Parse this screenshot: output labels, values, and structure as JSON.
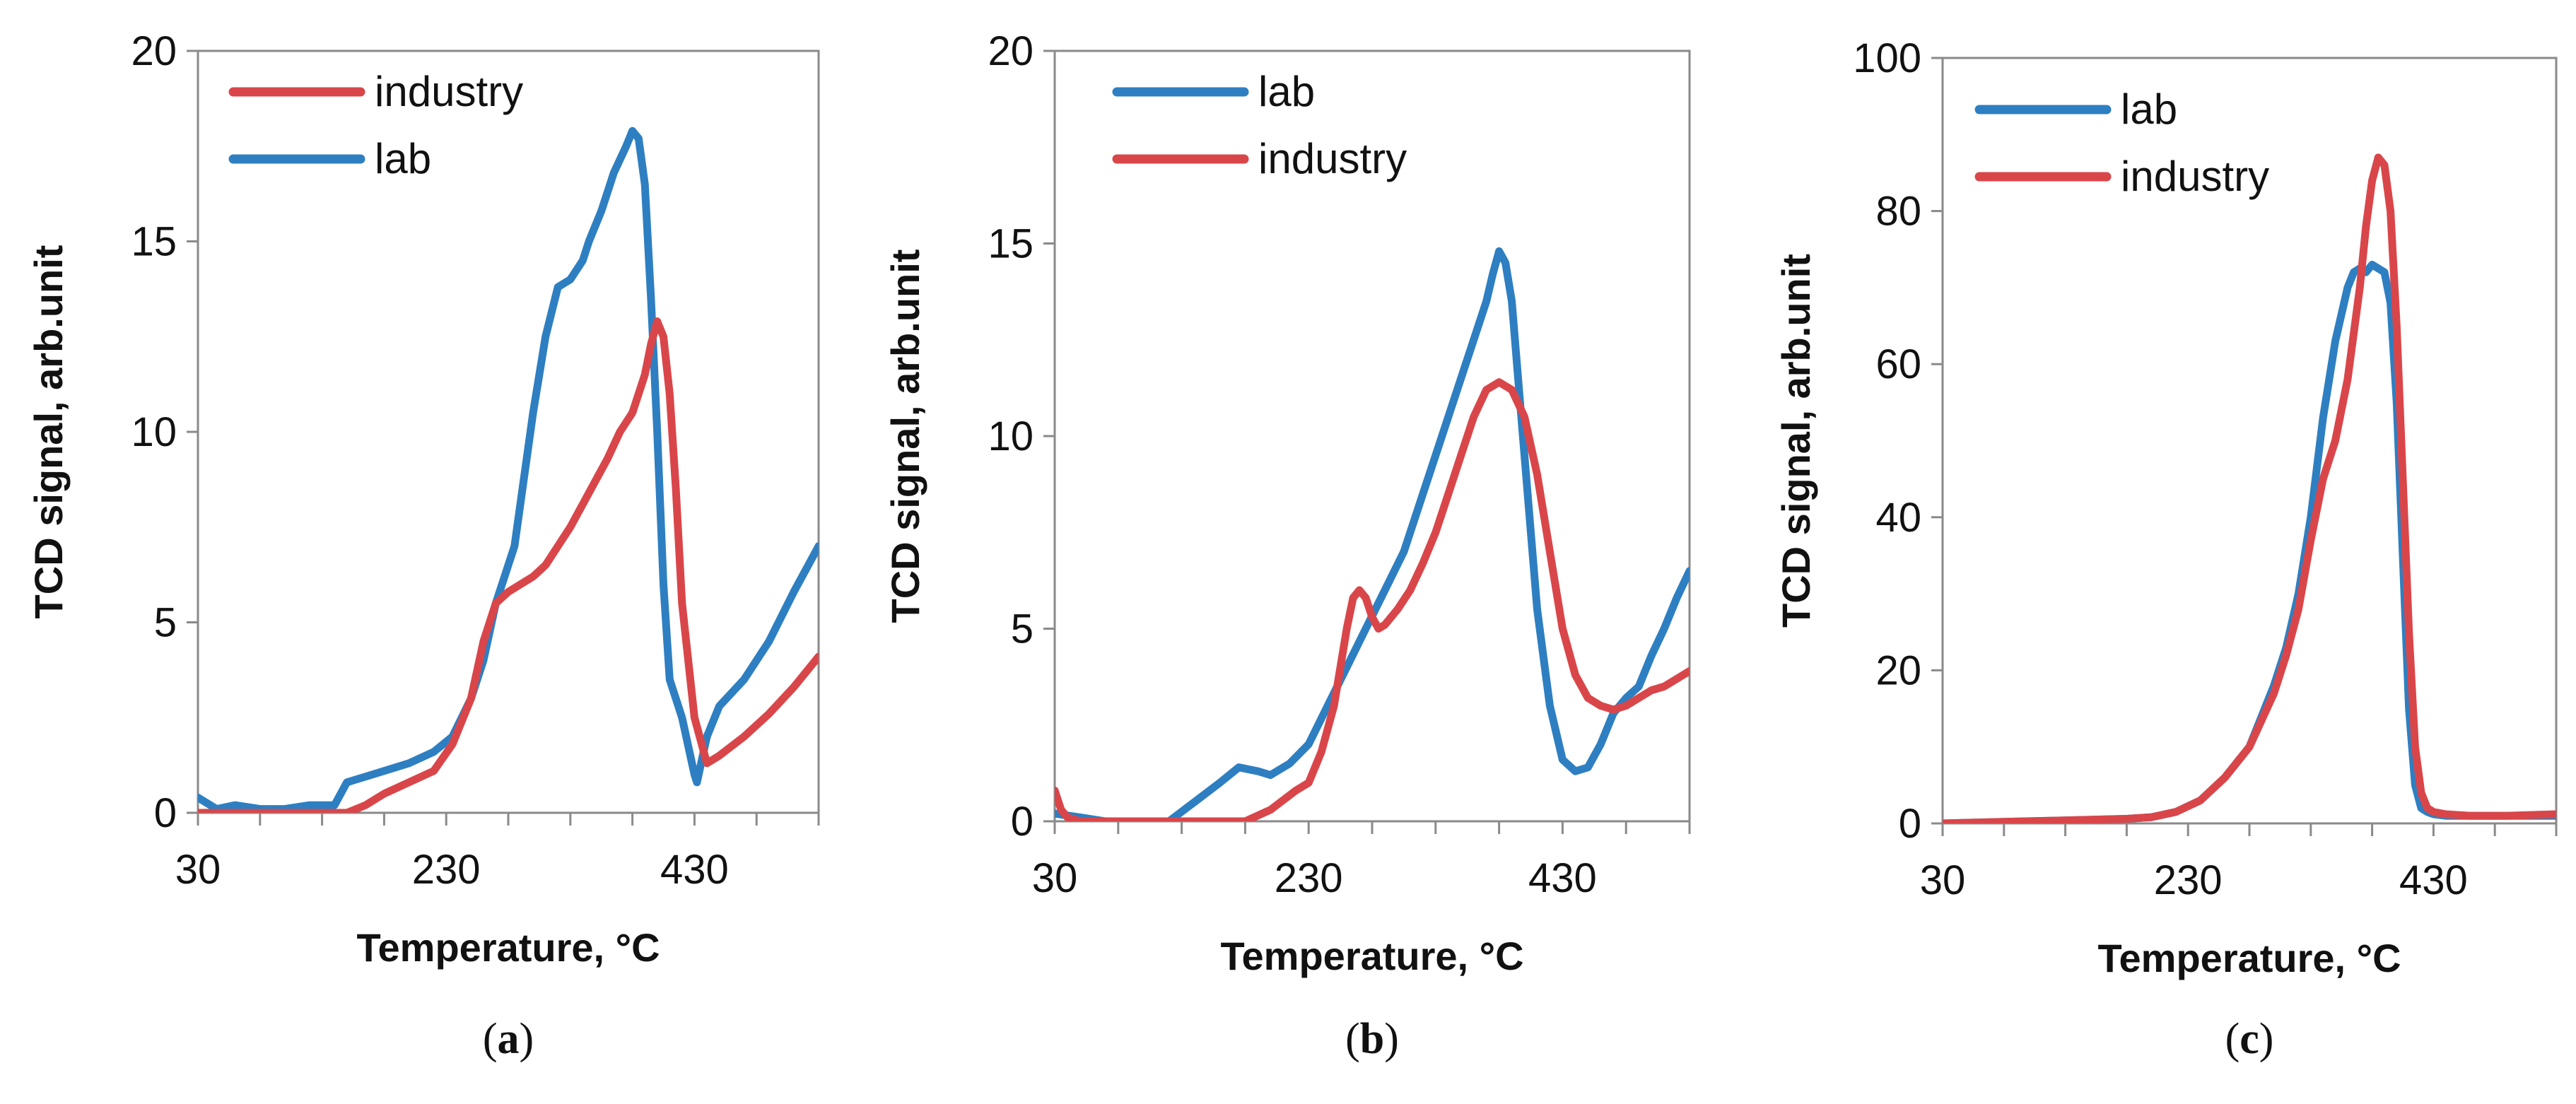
{
  "colors": {
    "lab": "#2e7fc1",
    "industry": "#d9464a",
    "axis": "#8a8a8a"
  },
  "chart_data": [
    {
      "type": "line",
      "panel_label": "(a)",
      "panel_letter": "a",
      "xlabel": "Temperature, °C",
      "ylabel": "TCD signal, arb.unit",
      "xlim": [
        30,
        530
      ],
      "ylim": [
        0,
        20
      ],
      "xticks": [
        30,
        230,
        430
      ],
      "yticks": [
        0,
        5,
        10,
        15,
        20
      ],
      "legend": [
        "industry",
        "lab"
      ],
      "series": [
        {
          "name": "lab",
          "color": "#2e7fc1",
          "x": [
            30,
            45,
            60,
            80,
            100,
            120,
            140,
            150,
            160,
            180,
            200,
            220,
            235,
            250,
            260,
            270,
            285,
            300,
            310,
            320,
            330,
            340,
            345,
            355,
            365,
            375,
            380,
            385,
            390,
            395,
            400,
            405,
            410,
            420,
            430,
            432,
            440,
            450,
            470,
            490,
            510,
            530
          ],
          "y": [
            0.4,
            0.1,
            0.2,
            0.1,
            0.1,
            0.2,
            0.2,
            0.8,
            0.9,
            1.1,
            1.3,
            1.6,
            2.0,
            3.0,
            4.0,
            5.5,
            7.0,
            10.5,
            12.5,
            13.8,
            14.0,
            14.5,
            15.0,
            15.8,
            16.8,
            17.5,
            17.9,
            17.7,
            16.5,
            13.5,
            10.0,
            6.0,
            3.5,
            2.5,
            1.0,
            0.8,
            2.0,
            2.8,
            3.5,
            4.5,
            5.8,
            7.0
          ]
        },
        {
          "name": "industry",
          "color": "#d9464a",
          "x": [
            30,
            50,
            80,
            100,
            130,
            150,
            165,
            180,
            200,
            220,
            235,
            250,
            260,
            270,
            280,
            290,
            300,
            310,
            320,
            330,
            340,
            350,
            360,
            370,
            380,
            390,
            395,
            400,
            405,
            410,
            415,
            420,
            430,
            440,
            450,
            470,
            490,
            510,
            530
          ],
          "y": [
            0.0,
            0.0,
            0.0,
            0.0,
            0.0,
            0.0,
            0.2,
            0.5,
            0.8,
            1.1,
            1.8,
            3.0,
            4.5,
            5.5,
            5.8,
            6.0,
            6.2,
            6.5,
            7.0,
            7.5,
            8.1,
            8.7,
            9.3,
            10.0,
            10.5,
            11.5,
            12.3,
            12.9,
            12.5,
            11.0,
            8.5,
            5.5,
            2.5,
            1.3,
            1.5,
            2.0,
            2.6,
            3.3,
            4.1
          ]
        }
      ]
    },
    {
      "type": "line",
      "panel_label": "(b)",
      "panel_letter": "b",
      "xlabel": "Temperature, °C",
      "ylabel": "TCD signal, arb.unit",
      "xlim": [
        30,
        530
      ],
      "ylim": [
        0,
        20
      ],
      "xticks": [
        30,
        230,
        430
      ],
      "yticks": [
        0,
        5,
        10,
        15,
        20
      ],
      "legend": [
        "lab",
        "industry"
      ],
      "series": [
        {
          "name": "lab",
          "color": "#2e7fc1",
          "x": [
            30,
            50,
            70,
            100,
            120,
            140,
            160,
            175,
            190,
            200,
            215,
            230,
            245,
            260,
            275,
            290,
            305,
            320,
            335,
            350,
            360,
            370,
            375,
            380,
            385,
            390,
            395,
            400,
            410,
            420,
            430,
            440,
            450,
            460,
            470,
            480,
            490,
            500,
            510,
            520,
            530
          ],
          "y": [
            0.2,
            0.1,
            0.0,
            0.0,
            0.0,
            0.5,
            1.0,
            1.4,
            1.3,
            1.2,
            1.5,
            2.0,
            3.0,
            4.0,
            5.0,
            6.0,
            7.0,
            8.5,
            10.0,
            11.5,
            12.5,
            13.5,
            14.2,
            14.8,
            14.5,
            13.5,
            11.5,
            9.5,
            5.5,
            3.0,
            1.6,
            1.3,
            1.4,
            2.0,
            2.8,
            3.2,
            3.5,
            4.3,
            5.0,
            5.8,
            6.5
          ]
        },
        {
          "name": "industry",
          "color": "#d9464a",
          "x": [
            30,
            35,
            40,
            50,
            60,
            80,
            100,
            120,
            140,
            160,
            180,
            200,
            220,
            230,
            240,
            250,
            255,
            260,
            265,
            270,
            275,
            280,
            285,
            290,
            300,
            310,
            320,
            330,
            340,
            350,
            360,
            370,
            380,
            390,
            400,
            410,
            420,
            430,
            440,
            450,
            460,
            470,
            480,
            490,
            500,
            510,
            520,
            530
          ],
          "y": [
            0.8,
            0.3,
            0.1,
            0.0,
            0.0,
            0.0,
            0.0,
            0.0,
            0.0,
            0.0,
            0.0,
            0.3,
            0.8,
            1.0,
            1.8,
            3.0,
            4.0,
            5.0,
            5.8,
            6.0,
            5.8,
            5.3,
            5.0,
            5.1,
            5.5,
            6.0,
            6.7,
            7.5,
            8.5,
            9.5,
            10.5,
            11.2,
            11.4,
            11.2,
            10.5,
            9.0,
            7.0,
            5.0,
            3.8,
            3.2,
            3.0,
            2.9,
            3.0,
            3.2,
            3.4,
            3.5,
            3.7,
            3.9
          ]
        }
      ]
    },
    {
      "type": "line",
      "panel_label": "(c)",
      "panel_letter": "c",
      "xlabel": "Temperature, °C",
      "ylabel": "TCD signal, arb.unit",
      "xlim": [
        30,
        530
      ],
      "ylim": [
        0,
        100
      ],
      "xticks": [
        30,
        230,
        430
      ],
      "yticks": [
        0,
        20,
        40,
        60,
        80,
        100
      ],
      "legend": [
        "lab",
        "industry"
      ],
      "series": [
        {
          "name": "lab",
          "color": "#2e7fc1",
          "x": [
            30,
            80,
            130,
            180,
            200,
            220,
            240,
            260,
            280,
            300,
            310,
            320,
            330,
            340,
            350,
            360,
            365,
            370,
            375,
            380,
            390,
            395,
            400,
            405,
            410,
            415,
            420,
            425,
            430,
            440,
            460,
            490,
            530
          ],
          "y": [
            0.0,
            0.2,
            0.4,
            0.6,
            0.8,
            1.5,
            3.0,
            6.0,
            10.0,
            18.0,
            23.0,
            30.0,
            40.0,
            53.0,
            63.0,
            70.0,
            72.0,
            72.5,
            72.0,
            73.0,
            72.0,
            68.0,
            55.0,
            35.0,
            15.0,
            5.0,
            2.0,
            1.5,
            1.2,
            1.0,
            1.0,
            1.0,
            1.0
          ]
        },
        {
          "name": "industry",
          "color": "#d9464a",
          "x": [
            30,
            80,
            130,
            180,
            200,
            220,
            240,
            260,
            280,
            300,
            310,
            320,
            330,
            340,
            350,
            360,
            370,
            375,
            380,
            385,
            390,
            395,
            400,
            405,
            410,
            415,
            420,
            425,
            430,
            440,
            460,
            490,
            530
          ],
          "y": [
            0.0,
            0.2,
            0.4,
            0.6,
            0.8,
            1.5,
            3.0,
            6.0,
            10.0,
            17.0,
            22.0,
            28.0,
            37.0,
            45.0,
            50.0,
            58.0,
            70.0,
            78.0,
            84.0,
            87.0,
            86.0,
            80.0,
            65.0,
            45.0,
            25.0,
            10.0,
            4.0,
            2.0,
            1.5,
            1.2,
            1.0,
            1.0,
            1.2
          ]
        }
      ]
    }
  ]
}
